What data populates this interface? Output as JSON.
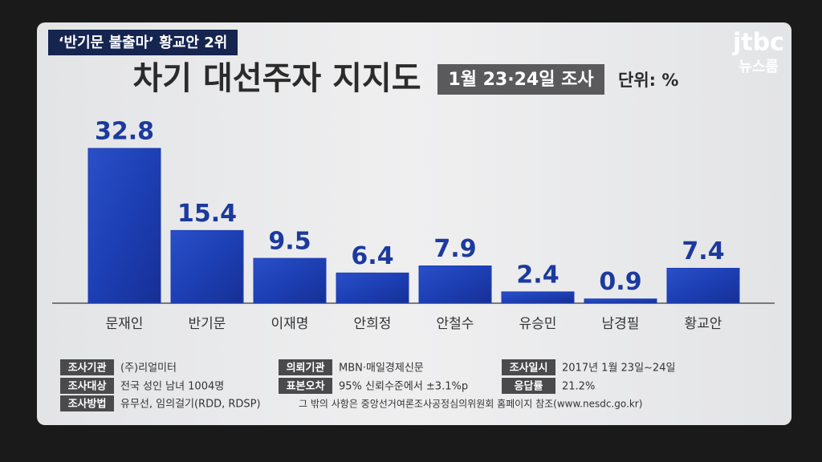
{
  "headline": "‘반기문 불출마’ 황교안 2위",
  "logo": {
    "brand": "jtbc",
    "program": "뉴스룸"
  },
  "chart_data": {
    "type": "bar",
    "title": "차기 대선주자 지지도",
    "subtitle": "1월 23·24일 조사",
    "unit": "단위: %",
    "categories": [
      "문재인",
      "반기문",
      "이재명",
      "안희정",
      "안철수",
      "유승민",
      "남경필",
      "황교안"
    ],
    "values": [
      32.8,
      15.4,
      9.5,
      6.4,
      7.9,
      2.4,
      0.9,
      7.4
    ],
    "color": "#1d3fb4"
  },
  "survey": {
    "rows": [
      [
        {
          "label": "조사기관",
          "text": "(주)리얼미터"
        },
        {
          "label": "의뢰기관",
          "text": "MBN·매일경제신문"
        },
        {
          "label": "조사일시",
          "text": "2017년 1월 23일~24일"
        }
      ],
      [
        {
          "label": "조사대상",
          "text": "전국 성인 남녀 1004명"
        },
        {
          "label": "표본오차",
          "text": "95% 신뢰수준에서 ±3.1%p"
        },
        {
          "label": "응답률",
          "text": "21.2%"
        }
      ],
      [
        {
          "label": "조사방법",
          "text": "유무선, 임의걸기(RDD, RDSP)"
        }
      ]
    ],
    "note": "그 밖의 사항은 중앙선거여론조사공정심의위원회 홈페이지 참조(www.nesdc.go.kr)"
  }
}
